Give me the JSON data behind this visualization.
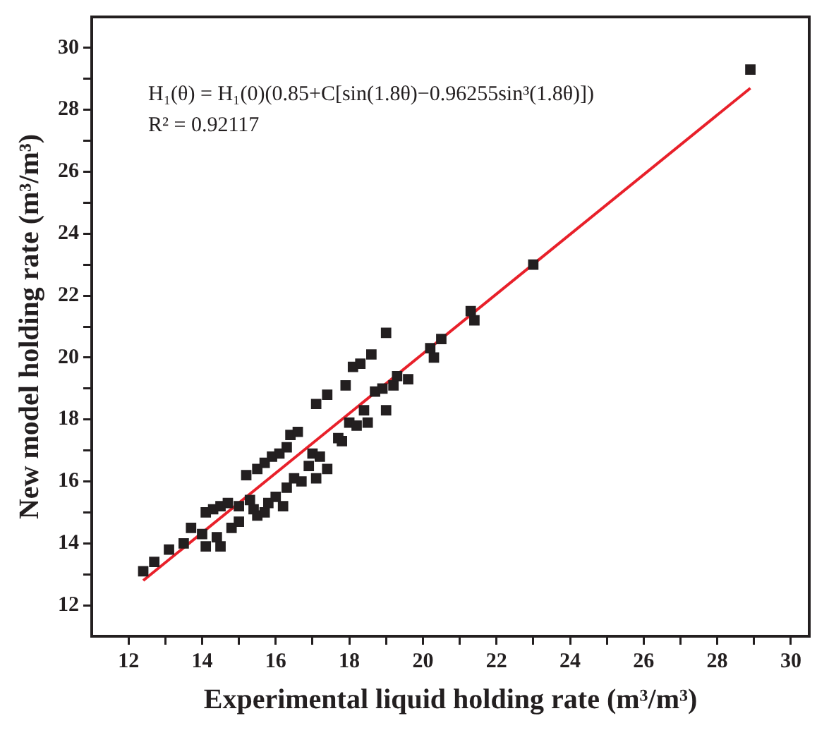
{
  "chart_data": {
    "type": "scatter",
    "xlabel": "Experimental liquid holding rate (m³/m³)",
    "ylabel": "New model holding rate (m³/m³)",
    "annotations": [
      "H₁(θ) = H₁(0)(0.85+C[sin(1.8θ)−0.96255sin³(1.8θ)])",
      "R² = 0.92117"
    ],
    "xlim": [
      11,
      30.5
    ],
    "ylim": [
      11,
      31
    ],
    "xticks": [
      12,
      {
        "value": 13,
        "label": null
      },
      14,
      {
        "value": 15,
        "label": null
      },
      16,
      {
        "value": 17,
        "label": null
      },
      18,
      {
        "value": 19,
        "label": null
      },
      20,
      {
        "value": 21,
        "label": null
      },
      22,
      {
        "value": 23,
        "label": null
      },
      24,
      {
        "value": 25,
        "label": null
      },
      26,
      {
        "value": 27,
        "label": null
      },
      28,
      {
        "value": 29,
        "label": null
      },
      30
    ],
    "yticks": [
      12,
      {
        "value": 13,
        "label": null
      },
      14,
      {
        "value": 15,
        "label": null
      },
      16,
      {
        "value": 17,
        "label": null
      },
      18,
      {
        "value": 19,
        "label": null
      },
      20,
      {
        "value": 21,
        "label": null
      },
      22,
      {
        "value": 23,
        "label": null
      },
      24,
      {
        "value": 25,
        "label": null
      },
      26,
      {
        "value": 27,
        "label": null
      },
      28,
      {
        "value": 29,
        "label": null
      },
      30
    ],
    "grid": false,
    "legend": false,
    "marker": "square",
    "series": [
      {
        "color": "#231f20",
        "x": [
          12.4,
          12.7,
          13.1,
          13.5,
          13.7,
          14.0,
          14.1,
          14.1,
          14.3,
          14.4,
          14.5,
          14.5,
          14.7,
          14.8,
          15.0,
          15.0,
          15.2,
          15.3,
          15.4,
          15.5,
          15.5,
          15.7,
          15.7,
          15.8,
          15.9,
          16.0,
          16.1,
          16.2,
          16.3,
          16.3,
          16.4,
          16.5,
          16.6,
          16.7,
          16.9,
          17.0,
          17.1,
          17.1,
          17.2,
          17.4,
          17.4,
          17.7,
          17.8,
          17.9,
          18.0,
          18.1,
          18.2,
          18.3,
          18.4,
          18.5,
          18.6,
          18.7,
          18.9,
          19.0,
          19.0,
          19.2,
          19.3,
          19.6,
          20.2,
          20.3,
          20.5,
          21.3,
          21.4,
          23.0,
          28.9
        ],
        "values": [
          13.1,
          13.4,
          13.8,
          14.0,
          14.5,
          14.3,
          15.0,
          13.9,
          15.1,
          14.2,
          13.9,
          15.2,
          15.3,
          14.5,
          14.7,
          15.2,
          16.2,
          15.4,
          15.1,
          14.9,
          16.4,
          15.0,
          16.6,
          15.3,
          16.8,
          15.5,
          16.9,
          15.2,
          17.1,
          15.8,
          17.5,
          16.1,
          17.6,
          16.0,
          16.5,
          16.9,
          16.1,
          18.5,
          16.8,
          16.4,
          18.8,
          17.4,
          17.3,
          19.1,
          17.9,
          19.7,
          17.8,
          19.8,
          18.3,
          17.9,
          20.1,
          18.9,
          19.0,
          20.8,
          18.3,
          19.1,
          19.4,
          19.3,
          20.3,
          20.0,
          20.6,
          21.5,
          21.2,
          23.0,
          29.3
        ]
      },
      {
        "type": "line",
        "color": "#e8202a",
        "marker": "none",
        "x": [
          12.4,
          28.9
        ],
        "values": [
          12.8,
          28.7
        ]
      }
    ]
  }
}
